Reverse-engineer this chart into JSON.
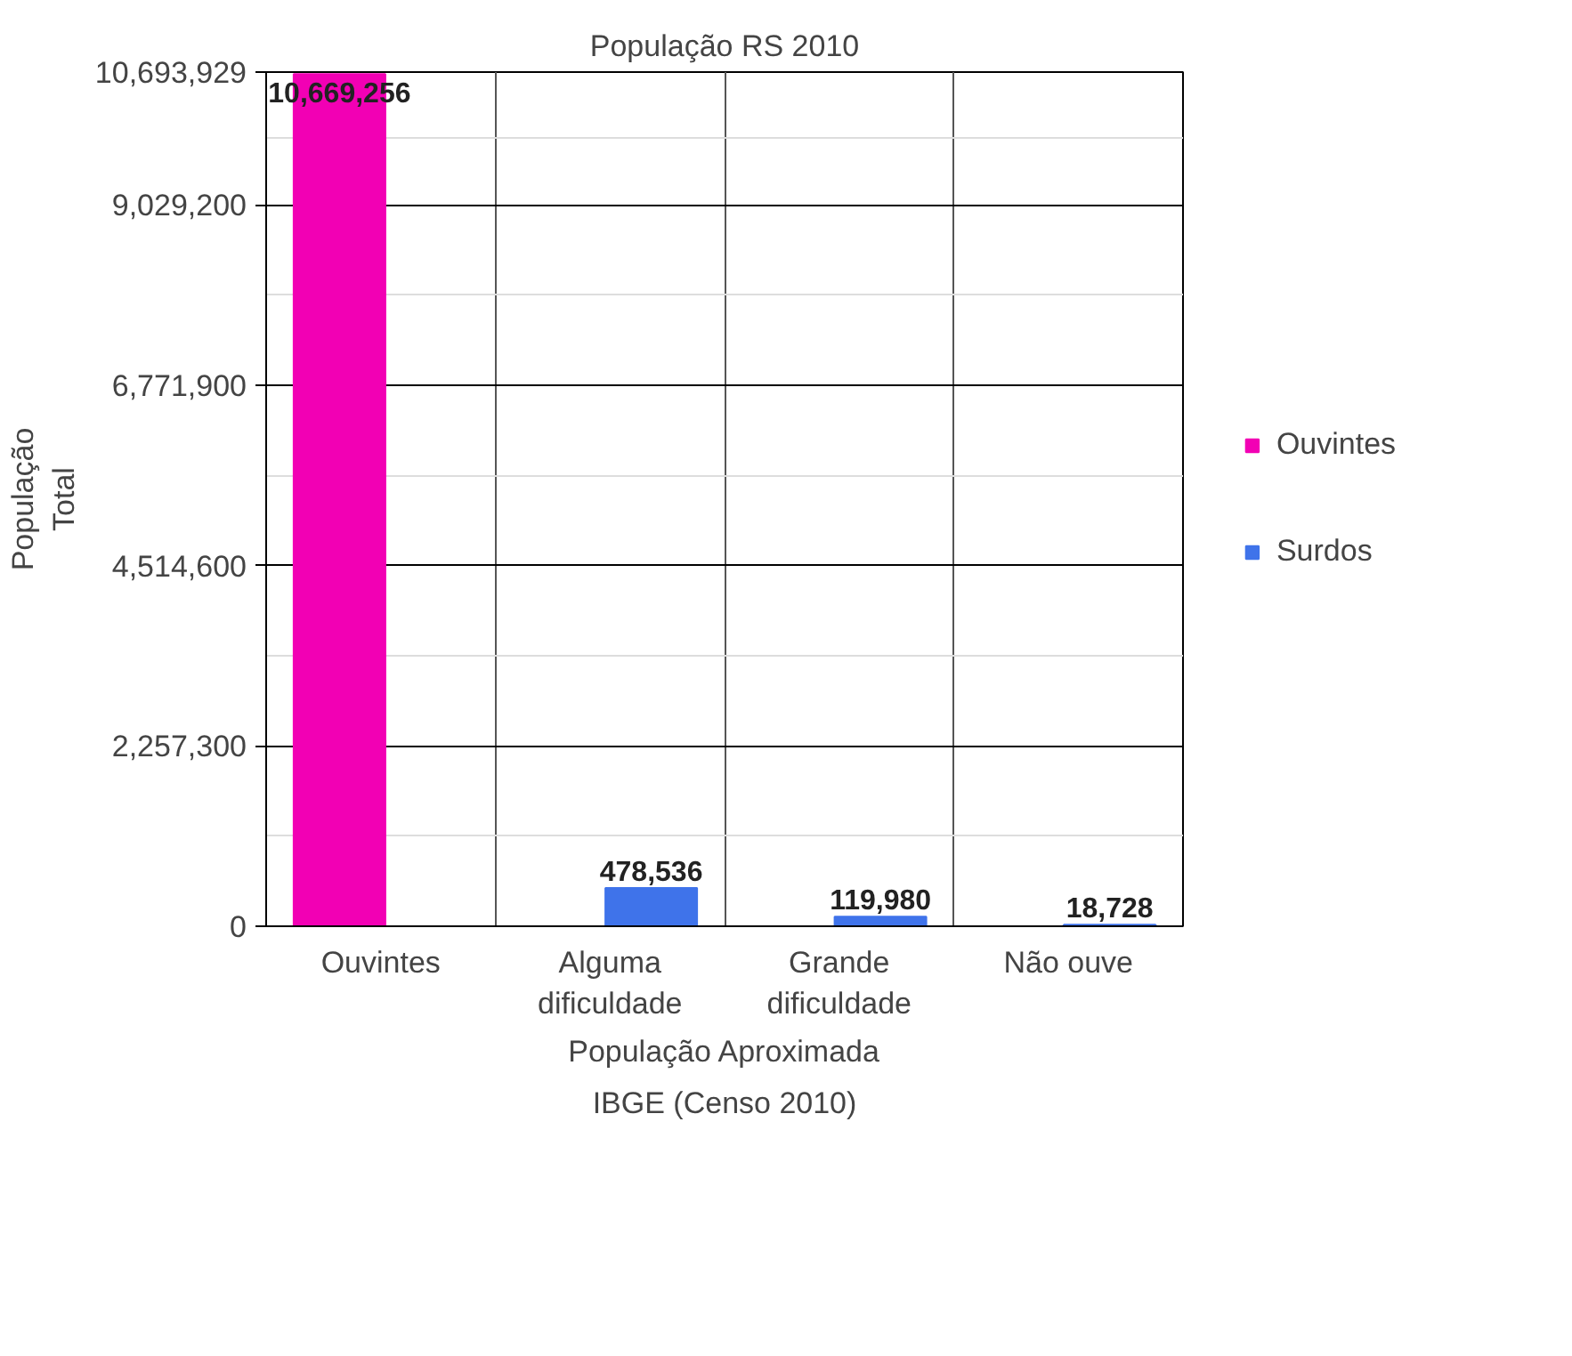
{
  "chart_data": {
    "type": "bar",
    "title": "População RS 2010",
    "xlabel": "População Aproximada",
    "ylabel": "População\nTotal",
    "annotations": [
      "IBGE (Censo 2010)"
    ],
    "categories": [
      "Ouvintes",
      "Alguma\ndificuldade",
      "Grande\ndificuldade",
      "Não ouve"
    ],
    "series": [
      {
        "name": "Ouvintes",
        "color": "#f200b4",
        "values": [
          10669256,
          null,
          null,
          null
        ],
        "value_labels": [
          "10,669,256",
          null,
          null,
          null
        ]
      },
      {
        "name": "Surdos",
        "color": "#3f73ea",
        "values": [
          null,
          478536,
          119980,
          18728
        ],
        "value_labels": [
          null,
          "478,536",
          "119,980",
          "18,728"
        ]
      }
    ],
    "ylim": [
      0,
      10693929
    ],
    "yticks": [
      {
        "value": 0,
        "label": "0"
      },
      {
        "value": 2257300,
        "label": "2,257,300"
      },
      {
        "value": 4514600,
        "label": "4,514,600"
      },
      {
        "value": 6771900,
        "label": "6,771,900"
      },
      {
        "value": 9029200,
        "label": "9,029,200"
      },
      {
        "value": 10693929,
        "label": "10,693,929"
      }
    ],
    "grid": true,
    "legend": "right"
  }
}
